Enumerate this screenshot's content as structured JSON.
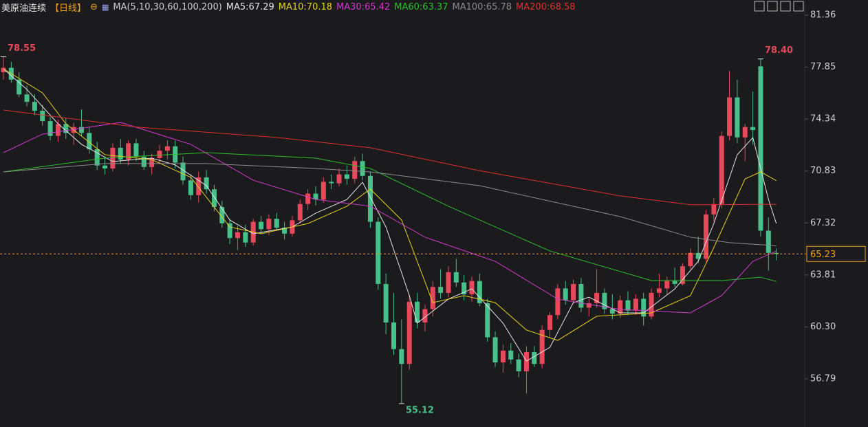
{
  "header": {
    "symbol": "美原油连续",
    "period": "【日线】",
    "ma_spec": "MA(5,10,30,60,100,200)"
  },
  "chart_data": {
    "type": "candlestick",
    "up_color": "#e8485b",
    "down_color": "#48c08a",
    "open": [
      77.5,
      77.8,
      77.0,
      76.0,
      75.5,
      74.9,
      74.2,
      73.2,
      74.0,
      73.4,
      73.8,
      73.4,
      72.3,
      71.2,
      71.0,
      72.4,
      71.6,
      72.7,
      71.8,
      71.1,
      71.7,
      72.2,
      72.5,
      71.4,
      70.2,
      69.2,
      70.4,
      69.6,
      68.4,
      67.3,
      66.3,
      66.7,
      66.0,
      67.4,
      66.9,
      67.6,
      67.0,
      66.6,
      67.5,
      68.6,
      69.3,
      68.9,
      70.1,
      70.0,
      70.6,
      70.3,
      71.5,
      70.5,
      67.4,
      63.2,
      60.6,
      58.8,
      57.8,
      62.0,
      60.6,
      61.5,
      63.0,
      62.6,
      64.0,
      63.3,
      62.5,
      63.4,
      61.9,
      59.6,
      57.9,
      58.7,
      58.1,
      57.3,
      58.6,
      57.8,
      60.1,
      61.1,
      62.9,
      62.1,
      63.2,
      61.6,
      61.9,
      62.6,
      61.5,
      61.2,
      62.1,
      61.4,
      62.2,
      61.0,
      62.6,
      62.9,
      63.4,
      63.2,
      64.4,
      65.3,
      64.9,
      67.9,
      68.6,
      73.2,
      75.8,
      73.1,
      73.8,
      77.9,
      66.8,
      65.3
    ],
    "high": [
      78.55,
      78.2,
      77.5,
      76.6,
      76.0,
      75.3,
      74.5,
      74.3,
      74.4,
      74.1,
      75.0,
      73.8,
      72.8,
      71.8,
      72.7,
      73.0,
      72.9,
      73.0,
      72.2,
      72.0,
      72.6,
      72.9,
      72.9,
      71.8,
      70.6,
      70.8,
      70.9,
      69.9,
      68.8,
      67.6,
      67.1,
      67.2,
      67.6,
      67.8,
      67.9,
      68.0,
      67.4,
      67.8,
      68.9,
      69.6,
      69.8,
      70.4,
      70.6,
      71.0,
      71.2,
      71.8,
      72.0,
      70.8,
      67.7,
      63.9,
      62.6,
      60.8,
      62.5,
      62.6,
      61.8,
      63.4,
      64.2,
      64.4,
      64.9,
      63.8,
      63.7,
      63.9,
      62.2,
      60.0,
      59.1,
      59.2,
      58.5,
      59.0,
      59.0,
      60.4,
      61.3,
      63.2,
      63.4,
      63.5,
      63.6,
      62.2,
      64.2,
      62.9,
      62.5,
      62.4,
      62.7,
      62.5,
      62.6,
      62.9,
      63.9,
      63.7,
      64.3,
      64.6,
      65.6,
      66.4,
      68.2,
      69.0,
      73.5,
      77.6,
      77.0,
      74.0,
      76.2,
      78.4,
      67.7,
      65.6
    ],
    "low": [
      77.0,
      76.8,
      75.8,
      75.2,
      74.6,
      73.9,
      72.9,
      72.8,
      73.0,
      72.6,
      73.2,
      72.0,
      70.9,
      70.6,
      70.8,
      71.3,
      71.2,
      71.5,
      70.9,
      70.6,
      71.3,
      71.6,
      71.0,
      69.9,
      68.9,
      68.7,
      69.3,
      68.1,
      67.0,
      65.9,
      65.5,
      65.7,
      65.8,
      66.6,
      66.5,
      66.8,
      66.2,
      66.4,
      67.3,
      68.2,
      68.5,
      68.7,
      69.6,
      69.8,
      69.9,
      70.0,
      70.2,
      67.0,
      62.8,
      59.8,
      58.4,
      55.12,
      57.4,
      60.2,
      60.0,
      61.0,
      62.2,
      62.3,
      63.0,
      62.1,
      62.0,
      61.7,
      59.3,
      57.6,
      57.2,
      57.8,
      56.9,
      55.8,
      57.6,
      57.5,
      59.6,
      60.8,
      61.8,
      61.9,
      61.3,
      61.0,
      61.6,
      61.2,
      60.8,
      60.9,
      61.1,
      61.1,
      60.4,
      60.8,
      62.3,
      62.5,
      63.0,
      63.1,
      64.2,
      64.6,
      64.7,
      67.4,
      68.3,
      72.9,
      72.7,
      71.5,
      72.6,
      66.4,
      64.1,
      64.8
    ],
    "close": [
      77.8,
      77.0,
      76.0,
      75.5,
      74.9,
      74.2,
      73.2,
      74.0,
      73.4,
      73.8,
      73.4,
      72.3,
      71.2,
      71.0,
      72.4,
      71.6,
      72.7,
      71.8,
      71.1,
      71.7,
      72.2,
      72.5,
      71.4,
      70.2,
      69.2,
      70.4,
      69.6,
      68.4,
      67.3,
      66.3,
      66.7,
      66.0,
      67.4,
      66.9,
      67.6,
      67.0,
      66.6,
      67.5,
      68.6,
      69.3,
      68.9,
      70.1,
      70.0,
      70.6,
      70.3,
      71.5,
      70.5,
      67.4,
      63.2,
      60.6,
      58.8,
      57.8,
      62.0,
      60.6,
      61.5,
      63.0,
      62.6,
      64.0,
      63.3,
      62.5,
      63.4,
      61.9,
      59.6,
      57.9,
      58.7,
      58.1,
      57.3,
      58.6,
      57.8,
      60.1,
      61.1,
      62.9,
      62.1,
      63.2,
      61.6,
      61.9,
      62.6,
      61.5,
      61.2,
      62.1,
      61.4,
      62.2,
      61.0,
      62.6,
      62.9,
      63.4,
      63.2,
      64.4,
      65.3,
      64.9,
      67.9,
      68.6,
      73.2,
      75.8,
      73.1,
      73.8,
      73.6,
      66.8,
      65.3,
      65.23
    ],
    "series": [
      {
        "name": "MA5:67.29",
        "color": "#e6e6e6",
        "x": [
          0,
          3,
          7,
          10,
          14,
          19,
          22,
          26,
          29,
          32,
          37,
          40,
          44,
          46,
          49,
          52,
          53,
          57,
          60,
          64,
          67,
          70,
          73,
          75,
          79,
          82,
          86,
          89,
          91,
          94,
          96,
          98,
          99
        ],
        "values": [
          77.73,
          76.34,
          74.02,
          72.63,
          71.47,
          71.7,
          71.24,
          69.84,
          67.52,
          66.59,
          67.05,
          67.98,
          68.91,
          70.07,
          67.05,
          62.41,
          60.55,
          62.18,
          62.87,
          60.55,
          57.99,
          58.92,
          61.94,
          62.31,
          61.25,
          61.25,
          62.87,
          64.73,
          67.28,
          71.93,
          73.09,
          68.91,
          67.29
        ]
      },
      {
        "name": "MA10:70.18",
        "color": "#e6d21e",
        "x": [
          0,
          5,
          8,
          13,
          19,
          24,
          29,
          33,
          39,
          44,
          47,
          51,
          55,
          59,
          63,
          67,
          71,
          76,
          83,
          88,
          91,
          95,
          97,
          99
        ],
        "values": [
          77.73,
          76.11,
          74.02,
          71.93,
          71.6,
          70.4,
          67.05,
          66.59,
          67.28,
          68.45,
          69.61,
          67.52,
          61.94,
          62.41,
          61.94,
          60.09,
          59.39,
          61.02,
          61.25,
          62.41,
          65.66,
          70.3,
          70.77,
          70.18
        ]
      },
      {
        "name": "MA30:65.42",
        "color": "#d23ad2",
        "x": [
          0,
          5,
          15,
          24,
          32,
          40,
          47,
          54,
          63,
          71,
          79,
          88,
          92,
          96,
          99
        ],
        "values": [
          72.07,
          73.32,
          74.11,
          72.63,
          70.21,
          68.91,
          68.45,
          66.36,
          64.73,
          62.18,
          61.48,
          61.25,
          62.41,
          64.73,
          65.42
        ]
      },
      {
        "name": "MA60:63.37",
        "color": "#2ec02e",
        "x": [
          0,
          13,
          26,
          40,
          47,
          57,
          70,
          83,
          92,
          97,
          99
        ],
        "values": [
          70.77,
          71.7,
          72.07,
          71.7,
          71.0,
          68.45,
          65.43,
          63.43,
          63.43,
          63.66,
          63.37
        ]
      },
      {
        "name": "MA100:65.78",
        "color": "#8c8c8c",
        "x": [
          0,
          13,
          26,
          40,
          47,
          61,
          79,
          88,
          93,
          99
        ],
        "values": [
          70.77,
          71.33,
          71.33,
          71.0,
          70.77,
          69.84,
          67.75,
          66.36,
          65.99,
          65.78
        ]
      },
      {
        "name": "MA200:68.58",
        "color": "#e03030",
        "x": [
          0,
          17,
          35,
          47,
          61,
          79,
          88,
          99
        ],
        "values": [
          74.95,
          73.8,
          73.1,
          72.4,
          70.85,
          69.15,
          68.55,
          68.58
        ]
      }
    ],
    "annotations": [
      78.55,
      {
        "value": 78.4,
        "label": "78.40"
      },
      55.12
    ],
    "last_price": 65.23,
    "last_price_color": "#f0a020",
    "ylim": [
      54.05,
      82.38
    ],
    "yticks": [
      81.36,
      77.85,
      74.34,
      70.83,
      67.32,
      63.81,
      {
        "value": 60.3,
        "label": "60.30"
      },
      56.79
    ]
  }
}
